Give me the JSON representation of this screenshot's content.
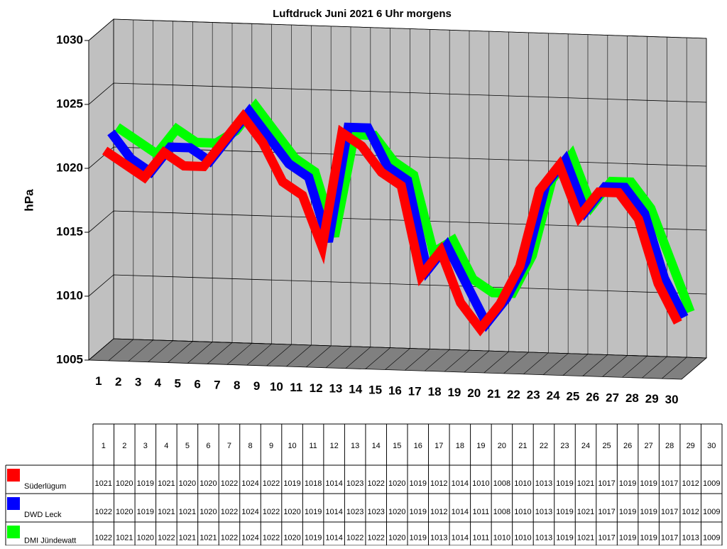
{
  "chart_data": {
    "type": "line3d",
    "title": "Luftdruck Juni 2021 6 Uhr morgens",
    "y_label": "hPa",
    "categories": [
      "1",
      "2",
      "3",
      "4",
      "5",
      "6",
      "7",
      "8",
      "9",
      "10",
      "11",
      "12",
      "13",
      "14",
      "15",
      "16",
      "17",
      "18",
      "19",
      "20",
      "21",
      "22",
      "23",
      "24",
      "25",
      "26",
      "27",
      "28",
      "29",
      "30"
    ],
    "ylim": [
      1005,
      1030
    ],
    "yticks": [
      1005,
      1010,
      1015,
      1020,
      1025,
      1030
    ],
    "grid": true,
    "series": [
      {
        "name": "Süderlügum",
        "color": "#ff0000",
        "values": [
          1021,
          1020,
          1019,
          1021,
          1020,
          1020,
          1022,
          1024,
          1022,
          1019,
          1018,
          1014,
          1023,
          1022,
          1020,
          1019,
          1012,
          1014,
          1010,
          1008,
          1010,
          1013,
          1019,
          1021,
          1017,
          1019,
          1019,
          1017,
          1012,
          1009
        ]
      },
      {
        "name": "DWD Leck",
        "color": "#0000ff",
        "values": [
          1022,
          1020,
          1019,
          1021,
          1021,
          1020,
          1022,
          1024,
          1022,
          1020,
          1019,
          1014,
          1023,
          1023,
          1020,
          1019,
          1012,
          1014,
          1011,
          1008,
          1010,
          1013,
          1019,
          1021,
          1017,
          1019,
          1019,
          1017,
          1012,
          1009
        ]
      },
      {
        "name": "DMI Jündewatt",
        "color": "#00ff00",
        "values": [
          1022,
          1021,
          1020,
          1022,
          1021,
          1021,
          1022,
          1024,
          1022,
          1020,
          1019,
          1014,
          1022,
          1022,
          1020,
          1019,
          1013,
          1014,
          1011,
          1010,
          1010,
          1013,
          1019,
          1021,
          1017,
          1019,
          1019,
          1017,
          1013,
          1009
        ]
      }
    ]
  }
}
